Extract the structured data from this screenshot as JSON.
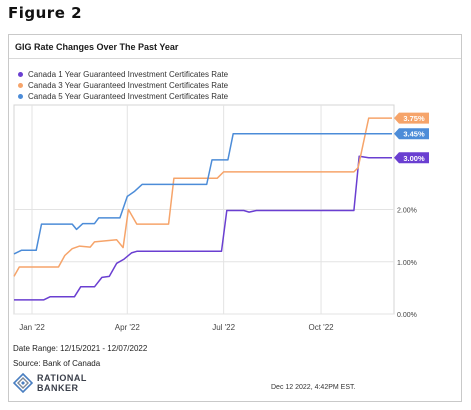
{
  "figure_label": "Figure 2",
  "footer": {
    "date_range": "Date Range: 12/15/2021 - 12/07/2022",
    "source": "Source: Bank of Canada",
    "logo_line1": "RATIONAL",
    "logo_line2": "BANKER",
    "timestamp": "Dec 12 2022, 4:42PM EST."
  },
  "chart_data": {
    "type": "line",
    "title": "GIG Rate Changes Over The Past Year",
    "xlabel": "",
    "ylabel": "",
    "x_ticks": [
      "Jan '22",
      "Apr '22",
      "Jul '22",
      "Oct '22"
    ],
    "y_ticks": [
      "0.00%",
      "1.00%",
      "2.00%"
    ],
    "ylim": [
      0,
      4
    ],
    "grid": true,
    "legend_position": "top-left",
    "series": [
      {
        "name": "Canada 1 Year Guaranteed Investment Certificates Rate",
        "color": "#6a3fd1",
        "end_label": "3.00%",
        "points": [
          [
            "2021-12-15",
            0.27
          ],
          [
            "2022-01-12",
            0.27
          ],
          [
            "2022-01-18",
            0.33
          ],
          [
            "2022-02-10",
            0.33
          ],
          [
            "2022-02-16",
            0.52
          ],
          [
            "2022-03-01",
            0.52
          ],
          [
            "2022-03-08",
            0.7
          ],
          [
            "2022-03-15",
            0.72
          ],
          [
            "2022-03-22",
            0.97
          ],
          [
            "2022-03-29",
            1.05
          ],
          [
            "2022-04-05",
            1.17
          ],
          [
            "2022-04-10",
            1.2
          ],
          [
            "2022-06-29",
            1.2
          ],
          [
            "2022-07-04",
            1.98
          ],
          [
            "2022-07-20",
            1.98
          ],
          [
            "2022-07-25",
            1.95
          ],
          [
            "2022-08-01",
            1.98
          ],
          [
            "2022-11-01",
            1.98
          ],
          [
            "2022-11-06",
            3.02
          ],
          [
            "2022-11-15",
            2.99
          ],
          [
            "2022-12-07",
            2.99
          ]
        ]
      },
      {
        "name": "Canada 3 Year Guaranteed Investment Certificates Rate",
        "color": "#f6a46a",
        "end_label": "3.75%",
        "points": [
          [
            "2021-12-15",
            0.72
          ],
          [
            "2021-12-20",
            0.9
          ],
          [
            "2022-01-26",
            0.9
          ],
          [
            "2022-02-01",
            1.12
          ],
          [
            "2022-02-08",
            1.25
          ],
          [
            "2022-02-15",
            1.3
          ],
          [
            "2022-02-25",
            1.28
          ],
          [
            "2022-03-01",
            1.38
          ],
          [
            "2022-03-22",
            1.42
          ],
          [
            "2022-03-28",
            1.27
          ],
          [
            "2022-04-02",
            2.0
          ],
          [
            "2022-04-10",
            1.72
          ],
          [
            "2022-05-10",
            1.72
          ],
          [
            "2022-05-15",
            2.6
          ],
          [
            "2022-06-25",
            2.6
          ],
          [
            "2022-07-01",
            2.72
          ],
          [
            "2022-11-01",
            2.72
          ],
          [
            "2022-11-05",
            2.8
          ],
          [
            "2022-11-15",
            3.75
          ],
          [
            "2022-12-07",
            3.75
          ]
        ]
      },
      {
        "name": "Canada 5 Year Guaranteed Investment Certificates Rate",
        "color": "#4c8cd8",
        "end_label": "3.45%",
        "points": [
          [
            "2021-12-15",
            1.15
          ],
          [
            "2021-12-22",
            1.22
          ],
          [
            "2022-01-05",
            1.22
          ],
          [
            "2022-01-10",
            1.72
          ],
          [
            "2022-02-08",
            1.72
          ],
          [
            "2022-02-12",
            1.62
          ],
          [
            "2022-02-18",
            1.73
          ],
          [
            "2022-03-01",
            1.73
          ],
          [
            "2022-03-05",
            1.84
          ],
          [
            "2022-03-25",
            1.84
          ],
          [
            "2022-04-01",
            2.25
          ],
          [
            "2022-04-08",
            2.35
          ],
          [
            "2022-04-15",
            2.48
          ],
          [
            "2022-06-15",
            2.48
          ],
          [
            "2022-06-20",
            2.95
          ],
          [
            "2022-07-05",
            2.95
          ],
          [
            "2022-07-10",
            3.45
          ],
          [
            "2022-12-07",
            3.45
          ]
        ]
      }
    ]
  }
}
